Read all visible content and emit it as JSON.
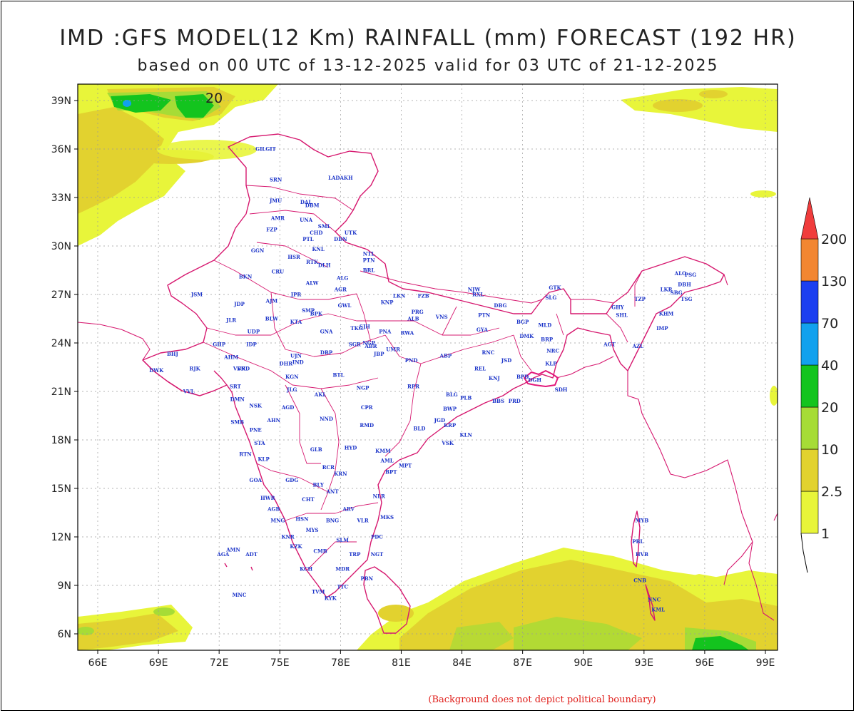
{
  "title": "IMD :GFS MODEL(12 Km) RAINFALL (mm) FORECAST (192 HR)",
  "subtitle": "based on 00 UTC of 13-12-2025 valid for 03 UTC of 21-12-2025",
  "footer_note": "(Background does not depict political boundary)",
  "contour_label": "20",
  "axes": {
    "lon_ticks": [
      "66E",
      "69E",
      "72E",
      "75E",
      "78E",
      "81E",
      "84E",
      "87E",
      "90E",
      "93E",
      "96E",
      "99E"
    ],
    "lat_ticks": [
      "39N",
      "36N",
      "33N",
      "30N",
      "27N",
      "24N",
      "21N",
      "18N",
      "15N",
      "12N",
      "9N",
      "6N"
    ]
  },
  "colorbar": {
    "levels": [
      "1",
      "2.5",
      "10",
      "20",
      "40",
      "70",
      "130",
      "200"
    ],
    "colors": [
      "#e8f53a",
      "#e2d22f",
      "#a6dc36",
      "#13c41e",
      "#12a1ee",
      "#1c3ff0",
      "#f28632",
      "#f03c3c"
    ]
  },
  "cities": [
    {
      "n": "GILGIT",
      "lon": 74.3,
      "lat": 35.9
    },
    {
      "n": "LADAKH",
      "lon": 78.0,
      "lat": 34.1
    },
    {
      "n": "SRN",
      "lon": 74.8,
      "lat": 34.0
    },
    {
      "n": "JMU",
      "lon": 74.8,
      "lat": 32.7
    },
    {
      "n": "DAL",
      "lon": 76.3,
      "lat": 32.6
    },
    {
      "n": "DBM",
      "lon": 76.6,
      "lat": 32.4
    },
    {
      "n": "AMR",
      "lon": 74.9,
      "lat": 31.6
    },
    {
      "n": "UNA",
      "lon": 76.3,
      "lat": 31.5
    },
    {
      "n": "SML",
      "lon": 77.2,
      "lat": 31.1
    },
    {
      "n": "FZP",
      "lon": 74.6,
      "lat": 30.9
    },
    {
      "n": "CHD",
      "lon": 76.8,
      "lat": 30.7
    },
    {
      "n": "UTK",
      "lon": 78.5,
      "lat": 30.7
    },
    {
      "n": "PTL",
      "lon": 76.4,
      "lat": 30.3
    },
    {
      "n": "DDN",
      "lon": 78.0,
      "lat": 30.3
    },
    {
      "n": "KNL",
      "lon": 76.9,
      "lat": 29.7
    },
    {
      "n": "GGN",
      "lon": 73.9,
      "lat": 29.6
    },
    {
      "n": "HSR",
      "lon": 75.7,
      "lat": 29.2
    },
    {
      "n": "NTL",
      "lon": 79.4,
      "lat": 29.4
    },
    {
      "n": "PTN",
      "lon": 79.4,
      "lat": 29.0
    },
    {
      "n": "RTK",
      "lon": 76.6,
      "lat": 28.9
    },
    {
      "n": "DLH",
      "lon": 77.2,
      "lat": 28.7
    },
    {
      "n": "BRL",
      "lon": 79.4,
      "lat": 28.4
    },
    {
      "n": "BKN",
      "lon": 73.3,
      "lat": 28.0
    },
    {
      "n": "CRU",
      "lon": 74.9,
      "lat": 28.3
    },
    {
      "n": "ALG",
      "lon": 78.1,
      "lat": 27.9
    },
    {
      "n": "ALW",
      "lon": 76.6,
      "lat": 27.6
    },
    {
      "n": "AGR",
      "lon": 78.0,
      "lat": 27.2
    },
    {
      "n": "JSM",
      "lon": 70.9,
      "lat": 26.9
    },
    {
      "n": "JPR",
      "lon": 75.8,
      "lat": 26.9
    },
    {
      "n": "LKN",
      "lon": 80.9,
      "lat": 26.8
    },
    {
      "n": "FZB",
      "lon": 82.1,
      "lat": 26.8
    },
    {
      "n": "NJW",
      "lon": 84.6,
      "lat": 27.2
    },
    {
      "n": "RXL",
      "lon": 84.8,
      "lat": 26.9
    },
    {
      "n": "KNP",
      "lon": 80.3,
      "lat": 26.4
    },
    {
      "n": "AJM",
      "lon": 74.6,
      "lat": 26.5
    },
    {
      "n": "JDP",
      "lon": 73.0,
      "lat": 26.3
    },
    {
      "n": "GWL",
      "lon": 78.2,
      "lat": 26.2
    },
    {
      "n": "DBG",
      "lon": 85.9,
      "lat": 26.2
    },
    {
      "n": "PRG",
      "lon": 81.8,
      "lat": 25.8
    },
    {
      "n": "SMP",
      "lon": 76.4,
      "lat": 25.9
    },
    {
      "n": "BPK",
      "lon": 76.8,
      "lat": 25.7
    },
    {
      "n": "VNS",
      "lon": 83.0,
      "lat": 25.5
    },
    {
      "n": "ALB",
      "lon": 81.6,
      "lat": 25.4
    },
    {
      "n": "PTN",
      "lon": 85.1,
      "lat": 25.6
    },
    {
      "n": "JLR",
      "lon": 72.6,
      "lat": 25.3
    },
    {
      "n": "BLW",
      "lon": 74.6,
      "lat": 25.4
    },
    {
      "n": "KTA",
      "lon": 75.8,
      "lat": 25.2
    },
    {
      "n": "BGP",
      "lon": 87.0,
      "lat": 25.2
    },
    {
      "n": "NGP",
      "lon": 79.4,
      "lat": 23.9
    },
    {
      "n": "ABR",
      "lon": 79.5,
      "lat": 23.7
    },
    {
      "n": "JBP",
      "lon": 79.9,
      "lat": 23.2
    },
    {
      "n": "TKG",
      "lon": 78.8,
      "lat": 24.8
    },
    {
      "n": "SJH",
      "lon": 79.2,
      "lat": 24.9
    },
    {
      "n": "PNA",
      "lon": 80.2,
      "lat": 24.6
    },
    {
      "n": "RWA",
      "lon": 81.3,
      "lat": 24.5
    },
    {
      "n": "GYA",
      "lon": 85.0,
      "lat": 24.7
    },
    {
      "n": "MLD",
      "lon": 88.1,
      "lat": 25.0
    },
    {
      "n": "GNA",
      "lon": 77.3,
      "lat": 24.6
    },
    {
      "n": "UDP",
      "lon": 73.7,
      "lat": 24.6
    },
    {
      "n": "DMK",
      "lon": 87.2,
      "lat": 24.3
    },
    {
      "n": "BRP",
      "lon": 88.2,
      "lat": 24.1
    },
    {
      "n": "RNC",
      "lon": 85.3,
      "lat": 23.3
    },
    {
      "n": "GHP",
      "lon": 72.0,
      "lat": 23.8
    },
    {
      "n": "SGR",
      "lon": 78.7,
      "lat": 23.8
    },
    {
      "n": "IDP",
      "lon": 73.6,
      "lat": 23.8
    },
    {
      "n": "DBP",
      "lon": 77.3,
      "lat": 23.3
    },
    {
      "n": "UMR",
      "lon": 80.6,
      "lat": 23.5
    },
    {
      "n": "ABP",
      "lon": 83.2,
      "lat": 23.1
    },
    {
      "n": "NRC",
      "lon": 88.5,
      "lat": 23.4
    },
    {
      "n": "BHJ",
      "lon": 69.7,
      "lat": 23.2
    },
    {
      "n": "AHM",
      "lon": 72.6,
      "lat": 23.0
    },
    {
      "n": "UJN",
      "lon": 75.8,
      "lat": 23.1
    },
    {
      "n": "JSD",
      "lon": 86.2,
      "lat": 22.8
    },
    {
      "n": "VVN",
      "lon": 73.0,
      "lat": 22.3
    },
    {
      "n": "IND",
      "lon": 75.9,
      "lat": 22.7
    },
    {
      "n": "PND",
      "lon": 81.5,
      "lat": 22.8
    },
    {
      "n": "BRD",
      "lon": 73.2,
      "lat": 22.3
    },
    {
      "n": "DHR",
      "lon": 75.3,
      "lat": 22.6
    },
    {
      "n": "KLP",
      "lon": 88.4,
      "lat": 22.6
    },
    {
      "n": "DWK",
      "lon": 68.9,
      "lat": 22.2
    },
    {
      "n": "RJK",
      "lon": 70.8,
      "lat": 22.3
    },
    {
      "n": "REL",
      "lon": 84.9,
      "lat": 22.3
    },
    {
      "n": "BTL",
      "lon": 77.9,
      "lat": 21.9
    },
    {
      "n": "KGN",
      "lon": 75.6,
      "lat": 21.8
    },
    {
      "n": "KNJ",
      "lon": 85.6,
      "lat": 21.7
    },
    {
      "n": "BPD",
      "lon": 87.0,
      "lat": 21.8
    },
    {
      "n": "DGH",
      "lon": 87.6,
      "lat": 21.6
    },
    {
      "n": "SRT",
      "lon": 72.8,
      "lat": 21.2
    },
    {
      "n": "NGP",
      "lon": 79.1,
      "lat": 21.1
    },
    {
      "n": "RPR",
      "lon": 81.6,
      "lat": 21.2
    },
    {
      "n": "JLG",
      "lon": 75.6,
      "lat": 21.0
    },
    {
      "n": "AKL",
      "lon": 77.0,
      "lat": 20.7
    },
    {
      "n": "SDH",
      "lon": 88.9,
      "lat": 21.0
    },
    {
      "n": "BLG",
      "lon": 83.5,
      "lat": 20.7
    },
    {
      "n": "VVL",
      "lon": 70.5,
      "lat": 20.9
    },
    {
      "n": "PLB",
      "lon": 84.2,
      "lat": 20.5
    },
    {
      "n": "BBS",
      "lon": 85.8,
      "lat": 20.3
    },
    {
      "n": "PRD",
      "lon": 86.6,
      "lat": 20.3
    },
    {
      "n": "DMN",
      "lon": 72.9,
      "lat": 20.4
    },
    {
      "n": "NSK",
      "lon": 73.8,
      "lat": 20.0
    },
    {
      "n": "AGD",
      "lon": 75.4,
      "lat": 19.9
    },
    {
      "n": "CPR",
      "lon": 79.3,
      "lat": 19.9
    },
    {
      "n": "BWP",
      "lon": 83.4,
      "lat": 19.8
    },
    {
      "n": "JGD",
      "lon": 82.9,
      "lat": 19.1
    },
    {
      "n": "NND",
      "lon": 77.3,
      "lat": 19.2
    },
    {
      "n": "AHN",
      "lon": 74.7,
      "lat": 19.1
    },
    {
      "n": "KRP",
      "lon": 83.4,
      "lat": 18.8
    },
    {
      "n": "RMD",
      "lon": 79.3,
      "lat": 18.8
    },
    {
      "n": "BLD",
      "lon": 81.9,
      "lat": 18.6
    },
    {
      "n": "SMB",
      "lon": 72.9,
      "lat": 19.0
    },
    {
      "n": "PNE",
      "lon": 73.8,
      "lat": 18.5
    },
    {
      "n": "KLN",
      "lon": 84.2,
      "lat": 18.2
    },
    {
      "n": "VSK",
      "lon": 83.3,
      "lat": 17.7
    },
    {
      "n": "STA",
      "lon": 74.0,
      "lat": 17.7
    },
    {
      "n": "HYD",
      "lon": 78.5,
      "lat": 17.4
    },
    {
      "n": "GLB",
      "lon": 76.8,
      "lat": 17.3
    },
    {
      "n": "KMM",
      "lon": 80.1,
      "lat": 17.2
    },
    {
      "n": "RTN",
      "lon": 73.3,
      "lat": 17.0
    },
    {
      "n": "KLP",
      "lon": 74.2,
      "lat": 16.7
    },
    {
      "n": "AML",
      "lon": 80.3,
      "lat": 16.6
    },
    {
      "n": "MPT",
      "lon": 81.2,
      "lat": 16.3
    },
    {
      "n": "RCR",
      "lon": 77.4,
      "lat": 16.2
    },
    {
      "n": "KRN",
      "lon": 78.0,
      "lat": 15.8
    },
    {
      "n": "BPT",
      "lon": 80.5,
      "lat": 15.9
    },
    {
      "n": "GDG",
      "lon": 75.6,
      "lat": 15.4
    },
    {
      "n": "GOA",
      "lon": 73.8,
      "lat": 15.4
    },
    {
      "n": "BLY",
      "lon": 76.9,
      "lat": 15.1
    },
    {
      "n": "ANT",
      "lon": 77.6,
      "lat": 14.7
    },
    {
      "n": "NLR",
      "lon": 79.9,
      "lat": 14.4
    },
    {
      "n": "CHT",
      "lon": 76.4,
      "lat": 14.2
    },
    {
      "n": "HWR",
      "lon": 74.4,
      "lat": 14.3
    },
    {
      "n": "ARV",
      "lon": 78.4,
      "lat": 13.6
    },
    {
      "n": "AGB",
      "lon": 74.7,
      "lat": 13.6
    },
    {
      "n": "VLR",
      "lon": 79.1,
      "lat": 12.9
    },
    {
      "n": "MKS",
      "lon": 80.3,
      "lat": 13.1
    },
    {
      "n": "HSN",
      "lon": 76.1,
      "lat": 13.0
    },
    {
      "n": "BNG",
      "lon": 77.6,
      "lat": 12.9
    },
    {
      "n": "MNG",
      "lon": 74.9,
      "lat": 12.9
    },
    {
      "n": "MYS",
      "lon": 76.6,
      "lat": 12.3
    },
    {
      "n": "KNR",
      "lon": 75.4,
      "lat": 11.9
    },
    {
      "n": "SLM",
      "lon": 78.1,
      "lat": 11.7
    },
    {
      "n": "KZK",
      "lon": 75.8,
      "lat": 11.3
    },
    {
      "n": "CMB",
      "lon": 77.0,
      "lat": 11.0
    },
    {
      "n": "PDC",
      "lon": 79.8,
      "lat": 11.9
    },
    {
      "n": "NGT",
      "lon": 79.8,
      "lat": 10.8
    },
    {
      "n": "TRP",
      "lon": 78.7,
      "lat": 10.8
    },
    {
      "n": "AMN",
      "lon": 72.7,
      "lat": 11.1
    },
    {
      "n": "AGA",
      "lon": 72.2,
      "lat": 10.8
    },
    {
      "n": "ADT",
      "lon": 73.6,
      "lat": 10.8
    },
    {
      "n": "KCH",
      "lon": 76.3,
      "lat": 9.9
    },
    {
      "n": "MDR",
      "lon": 78.1,
      "lat": 9.9
    },
    {
      "n": "PBN",
      "lon": 79.3,
      "lat": 9.3
    },
    {
      "n": "TVM",
      "lon": 76.9,
      "lat": 8.5
    },
    {
      "n": "TTC",
      "lon": 78.1,
      "lat": 8.8
    },
    {
      "n": "KYK",
      "lon": 77.5,
      "lat": 8.1
    },
    {
      "n": "MNC",
      "lon": 73.0,
      "lat": 8.3
    },
    {
      "n": "GTK",
      "lon": 88.6,
      "lat": 27.3
    },
    {
      "n": "SLG",
      "lon": 88.4,
      "lat": 26.7
    },
    {
      "n": "GHY",
      "lon": 91.7,
      "lat": 26.1
    },
    {
      "n": "SHL",
      "lon": 91.9,
      "lat": 25.6
    },
    {
      "n": "TZP",
      "lon": 92.8,
      "lat": 26.6
    },
    {
      "n": "KHM",
      "lon": 94.1,
      "lat": 25.7
    },
    {
      "n": "IMP",
      "lon": 93.9,
      "lat": 24.8
    },
    {
      "n": "AGT",
      "lon": 91.3,
      "lat": 23.8
    },
    {
      "n": "AZL",
      "lon": 92.7,
      "lat": 23.7
    },
    {
      "n": "ALO",
      "lon": 94.8,
      "lat": 28.2
    },
    {
      "n": "PSG",
      "lon": 95.3,
      "lat": 28.1
    },
    {
      "n": "DBH",
      "lon": 95.0,
      "lat": 27.5
    },
    {
      "n": "LKR",
      "lon": 94.1,
      "lat": 27.2
    },
    {
      "n": "SBG",
      "lon": 94.6,
      "lat": 27.0
    },
    {
      "n": "TSG",
      "lon": 95.1,
      "lat": 26.6
    },
    {
      "n": "MYB",
      "lon": 92.9,
      "lat": 12.9
    },
    {
      "n": "PBL",
      "lon": 92.7,
      "lat": 11.6
    },
    {
      "n": "HVB",
      "lon": 92.9,
      "lat": 10.8
    },
    {
      "n": "CNB",
      "lon": 92.8,
      "lat": 9.2
    },
    {
      "n": "NNC",
      "lon": 93.5,
      "lat": 8.0
    },
    {
      "n": "KML",
      "lon": 93.7,
      "lat": 7.4
    }
  ]
}
